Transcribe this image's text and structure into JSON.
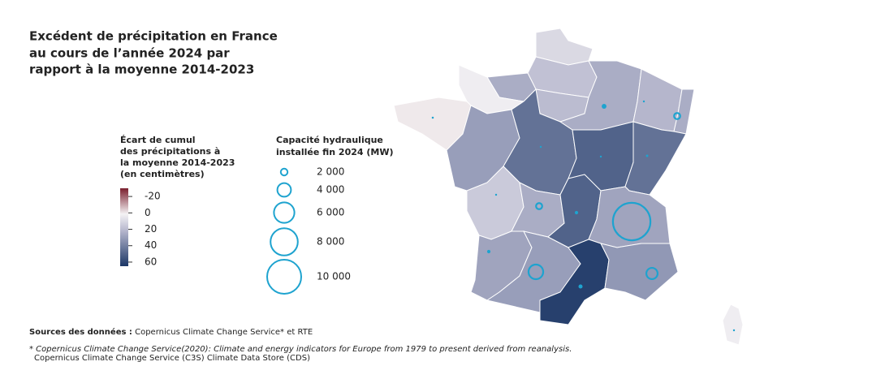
{
  "title": [
    "Excédent de précipitation en France",
    "au cours de l’année 2024 par",
    "rapport à la moyenne 2014-2023"
  ],
  "color_legend": {
    "title": [
      "Écart de cumul",
      "des précipitations à",
      "la moyenne 2014-2023",
      "(en centimètres)"
    ],
    "lim": [
      -30,
      65
    ],
    "ticks": [
      -20,
      0,
      20,
      40,
      60
    ]
  },
  "size_legend": {
    "title": [
      "Capacité hydraulique",
      "installée fin 2024 (MW)"
    ],
    "ticks": [
      {
        "value": 2000,
        "label": "2 000"
      },
      {
        "value": 4000,
        "label": "4 000"
      },
      {
        "value": 6000,
        "label": "6 000"
      },
      {
        "value": 8000,
        "label": "8 000"
      },
      {
        "value": 10000,
        "label": "10 000"
      }
    ]
  },
  "regions": [
    {
      "value": 10,
      "capacity": null
    },
    {
      "value": 18,
      "capacity": null
    },
    {
      "value": 25,
      "capacity": null
    },
    {
      "value": 3,
      "capacity": null
    },
    {
      "value": 0,
      "capacity": 600
    },
    {
      "value": 30,
      "capacity": null
    },
    {
      "value": 20,
      "capacity": null
    },
    {
      "value": 45,
      "capacity": 200
    },
    {
      "value": 25,
      "capacity": 1400
    },
    {
      "value": 22,
      "capacity": 400
    },
    {
      "value": 25,
      "capacity": 1800
    },
    {
      "value": 50,
      "capacity": 300
    },
    {
      "value": 45,
      "capacity": 700
    },
    {
      "value": 15,
      "capacity": 200
    },
    {
      "value": 25,
      "capacity": 1800
    },
    {
      "value": 50,
      "capacity": 1000
    },
    {
      "value": 28,
      "capacity": 11000
    },
    {
      "value": 28,
      "capacity": 1000
    },
    {
      "value": 30,
      "capacity": 4300
    },
    {
      "value": 62,
      "capacity": 1200
    },
    {
      "value": 32,
      "capacity": 3300
    },
    {
      "value": 3,
      "capacity": 500
    }
  ],
  "source": {
    "label": "Sources des données :",
    "text": "Copernicus Climate Change Service* et RTE"
  },
  "footnote": [
    "* Copernicus Climate Change Service(2020): Climate and energy indicators for Europe from 1979 to present derived from reanalysis.",
    "Copernicus Climate Change Service (C3S) Climate Data Store (CDS)"
  ]
}
